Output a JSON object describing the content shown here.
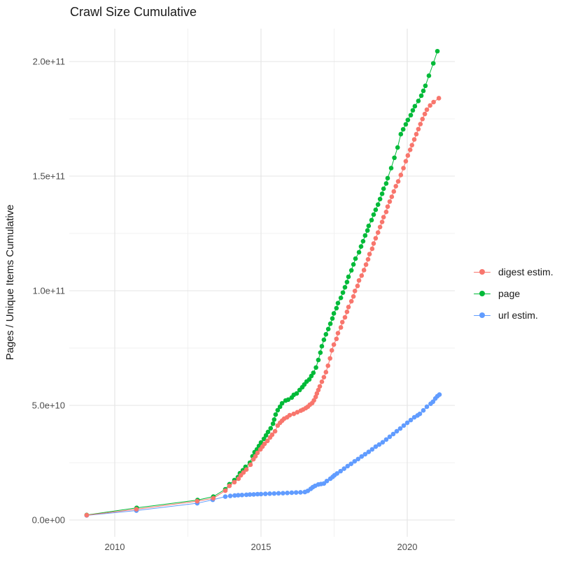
{
  "title": "Crawl Size Cumulative",
  "y_axis": {
    "title": "Pages / Unique Items Cumulative",
    "tick_labels": [
      "0.0e+00",
      "5.0e+10",
      "1.0e+11",
      "1.5e+11",
      "2.0e+11"
    ],
    "tick_values_billions": [
      0,
      50,
      100,
      150,
      200
    ],
    "minor_values_billions": [
      25,
      75,
      125,
      175
    ]
  },
  "x_axis": {
    "tick_labels": [
      "2010",
      "2015",
      "2020"
    ],
    "tick_values": [
      2010,
      2015,
      2020
    ],
    "minor_values": [
      2012.5,
      2017.5
    ]
  },
  "legend": {
    "items": [
      {
        "label": "digest estim.",
        "color": "#F8766D"
      },
      {
        "label": "page",
        "color": "#00BA38"
      },
      {
        "label": "url estim.",
        "color": "#619CFF"
      }
    ]
  },
  "colors": {
    "digest": "#F8766D",
    "page": "#00BA38",
    "url": "#619CFF",
    "grid_major": "#e4e4e4",
    "grid_minor": "#f0f0f0",
    "tick_text": "#4d4d4d",
    "title_text": "#1a1a1a"
  },
  "chart_data": {
    "type": "line",
    "marker": "point",
    "x_unit": "year",
    "y_unit": "pages / unique items (billions, 1e9)",
    "xlim": [
      2008.4,
      2021.7
    ],
    "ylim_billions": [
      0,
      215
    ],
    "grid": true,
    "legend_position": "right",
    "series": [
      {
        "name": "digest estim.",
        "color": "#F8766D",
        "points": [
          [
            2009.04,
            2.1
          ],
          [
            2010.74,
            4.7
          ],
          [
            2012.82,
            8.2
          ],
          [
            2013.37,
            9.5
          ],
          [
            2013.78,
            12.8
          ],
          [
            2013.92,
            14.9
          ],
          [
            2014.09,
            16.5
          ],
          [
            2014.23,
            18.0
          ],
          [
            2014.31,
            19.5
          ],
          [
            2014.4,
            20.7
          ],
          [
            2014.5,
            22.0
          ],
          [
            2014.64,
            24.1
          ],
          [
            2014.74,
            26.5
          ],
          [
            2014.81,
            27.8
          ],
          [
            2014.88,
            29.3
          ],
          [
            2014.98,
            30.8
          ],
          [
            2015.05,
            32.0
          ],
          [
            2015.12,
            33.2
          ],
          [
            2015.22,
            34.5
          ],
          [
            2015.31,
            36.0
          ],
          [
            2015.38,
            37.2
          ],
          [
            2015.48,
            38.7
          ],
          [
            2015.57,
            41.2
          ],
          [
            2015.65,
            42.4
          ],
          [
            2015.72,
            43.3
          ],
          [
            2015.79,
            44.2
          ],
          [
            2015.89,
            44.8
          ],
          [
            2015.98,
            45.7
          ],
          [
            2016.12,
            46.3
          ],
          [
            2016.24,
            47.0
          ],
          [
            2016.36,
            47.7
          ],
          [
            2016.44,
            48.2
          ],
          [
            2016.53,
            48.8
          ],
          [
            2016.6,
            49.4
          ],
          [
            2016.67,
            50.3
          ],
          [
            2016.75,
            51.0
          ],
          [
            2016.81,
            52.2
          ],
          [
            2016.87,
            53.7
          ],
          [
            2016.91,
            55.2
          ],
          [
            2016.96,
            56.7
          ],
          [
            2017.01,
            58.3
          ],
          [
            2017.08,
            60.3
          ],
          [
            2017.15,
            62.3
          ],
          [
            2017.22,
            64.5
          ],
          [
            2017.29,
            67.3
          ],
          [
            2017.36,
            70.5
          ],
          [
            2017.42,
            74.0
          ],
          [
            2017.49,
            76.5
          ],
          [
            2017.58,
            79.0
          ],
          [
            2017.63,
            81.5
          ],
          [
            2017.73,
            84.0
          ],
          [
            2017.78,
            86.3
          ],
          [
            2017.87,
            88.4
          ],
          [
            2017.94,
            90.8
          ],
          [
            2017.99,
            92.9
          ],
          [
            2018.09,
            95.4
          ],
          [
            2018.16,
            97.5
          ],
          [
            2018.21,
            99.9
          ],
          [
            2018.3,
            102.1
          ],
          [
            2018.35,
            104.5
          ],
          [
            2018.44,
            106.6
          ],
          [
            2018.52,
            109.0
          ],
          [
            2018.59,
            111.4
          ],
          [
            2018.66,
            113.7
          ],
          [
            2018.71,
            116.0
          ],
          [
            2018.8,
            118.3
          ],
          [
            2018.85,
            120.6
          ],
          [
            2018.92,
            122.9
          ],
          [
            2019.0,
            125.4
          ],
          [
            2019.07,
            127.8
          ],
          [
            2019.14,
            130.0
          ],
          [
            2019.19,
            132.1
          ],
          [
            2019.28,
            134.4
          ],
          [
            2019.33,
            136.7
          ],
          [
            2019.4,
            138.9
          ],
          [
            2019.47,
            141.0
          ],
          [
            2019.54,
            143.3
          ],
          [
            2019.61,
            145.6
          ],
          [
            2019.69,
            147.7
          ],
          [
            2019.78,
            150.5
          ],
          [
            2019.87,
            153.5
          ],
          [
            2019.95,
            156.5
          ],
          [
            2020.02,
            159.0
          ],
          [
            2020.1,
            161.5
          ],
          [
            2020.16,
            163.5
          ],
          [
            2020.24,
            166.0
          ],
          [
            2020.31,
            168.3
          ],
          [
            2020.38,
            170.5
          ],
          [
            2020.45,
            172.7
          ],
          [
            2020.52,
            174.9
          ],
          [
            2020.6,
            177.1
          ],
          [
            2020.67,
            179.0
          ],
          [
            2020.78,
            180.8
          ],
          [
            2020.9,
            182.3
          ],
          [
            2021.08,
            184.0
          ]
        ]
      },
      {
        "name": "page",
        "color": "#00BA38",
        "points": [
          [
            2009.04,
            2.2
          ],
          [
            2010.75,
            5.3
          ],
          [
            2012.83,
            8.7
          ],
          [
            2013.37,
            10.2
          ],
          [
            2013.78,
            13.4
          ],
          [
            2013.92,
            15.6
          ],
          [
            2014.09,
            17.4
          ],
          [
            2014.21,
            18.7
          ],
          [
            2014.28,
            20.4
          ],
          [
            2014.38,
            21.7
          ],
          [
            2014.47,
            23.2
          ],
          [
            2014.62,
            25.0
          ],
          [
            2014.71,
            27.8
          ],
          [
            2014.78,
            29.6
          ],
          [
            2014.86,
            30.8
          ],
          [
            2014.93,
            32.3
          ],
          [
            2015.0,
            33.8
          ],
          [
            2015.1,
            35.4
          ],
          [
            2015.17,
            36.9
          ],
          [
            2015.24,
            38.4
          ],
          [
            2015.33,
            40.0
          ],
          [
            2015.41,
            42.0
          ],
          [
            2015.45,
            43.8
          ],
          [
            2015.5,
            46.0
          ],
          [
            2015.57,
            47.9
          ],
          [
            2015.65,
            49.4
          ],
          [
            2015.72,
            50.9
          ],
          [
            2015.84,
            52.1
          ],
          [
            2015.93,
            52.5
          ],
          [
            2016.05,
            53.4
          ],
          [
            2016.12,
            54.6
          ],
          [
            2016.22,
            55.2
          ],
          [
            2016.32,
            56.7
          ],
          [
            2016.41,
            57.9
          ],
          [
            2016.48,
            59.1
          ],
          [
            2016.56,
            60.4
          ],
          [
            2016.65,
            61.3
          ],
          [
            2016.72,
            62.8
          ],
          [
            2016.79,
            64.2
          ],
          [
            2016.88,
            66.5
          ],
          [
            2016.96,
            69.8
          ],
          [
            2017.03,
            73.0
          ],
          [
            2017.08,
            75.8
          ],
          [
            2017.15,
            78.6
          ],
          [
            2017.22,
            81.0
          ],
          [
            2017.3,
            83.3
          ],
          [
            2017.37,
            85.6
          ],
          [
            2017.44,
            87.9
          ],
          [
            2017.49,
            90.1
          ],
          [
            2017.58,
            92.4
          ],
          [
            2017.63,
            94.6
          ],
          [
            2017.73,
            96.9
          ],
          [
            2017.8,
            99.2
          ],
          [
            2017.87,
            101.5
          ],
          [
            2017.94,
            103.8
          ],
          [
            2017.99,
            106.1
          ],
          [
            2018.09,
            108.9
          ],
          [
            2018.16,
            111.5
          ],
          [
            2018.23,
            114.0
          ],
          [
            2018.35,
            116.8
          ],
          [
            2018.42,
            119.3
          ],
          [
            2018.49,
            121.6
          ],
          [
            2018.56,
            124.1
          ],
          [
            2018.64,
            126.3
          ],
          [
            2018.68,
            128.3
          ],
          [
            2018.78,
            130.8
          ],
          [
            2018.85,
            133.2
          ],
          [
            2018.92,
            135.3
          ],
          [
            2019.0,
            137.6
          ],
          [
            2019.07,
            140.0
          ],
          [
            2019.14,
            142.3
          ],
          [
            2019.19,
            144.5
          ],
          [
            2019.28,
            146.8
          ],
          [
            2019.33,
            149.1
          ],
          [
            2019.45,
            153.5
          ],
          [
            2019.56,
            158.0
          ],
          [
            2019.67,
            162.5
          ],
          [
            2019.78,
            168.3
          ],
          [
            2019.86,
            170.4
          ],
          [
            2019.95,
            172.6
          ],
          [
            2020.02,
            174.5
          ],
          [
            2020.12,
            176.6
          ],
          [
            2020.19,
            178.7
          ],
          [
            2020.26,
            180.5
          ],
          [
            2020.38,
            182.8
          ],
          [
            2020.48,
            185.1
          ],
          [
            2020.55,
            187.2
          ],
          [
            2020.62,
            189.4
          ],
          [
            2020.74,
            193.8
          ],
          [
            2020.89,
            199.2
          ],
          [
            2021.03,
            204.5
          ]
        ]
      },
      {
        "name": "url estim.",
        "color": "#619CFF",
        "points": [
          [
            2009.04,
            2.0
          ],
          [
            2010.74,
            4.1
          ],
          [
            2012.82,
            7.3
          ],
          [
            2013.35,
            8.8
          ],
          [
            2013.78,
            10.2
          ],
          [
            2013.95,
            10.5
          ],
          [
            2014.1,
            10.7
          ],
          [
            2014.22,
            10.8
          ],
          [
            2014.35,
            10.9
          ],
          [
            2014.5,
            11.0
          ],
          [
            2014.62,
            11.1
          ],
          [
            2014.75,
            11.15
          ],
          [
            2014.88,
            11.25
          ],
          [
            2015.0,
            11.3
          ],
          [
            2015.15,
            11.4
          ],
          [
            2015.3,
            11.5
          ],
          [
            2015.45,
            11.55
          ],
          [
            2015.6,
            11.65
          ],
          [
            2015.75,
            11.7
          ],
          [
            2015.9,
            11.8
          ],
          [
            2016.05,
            11.9
          ],
          [
            2016.2,
            12.0
          ],
          [
            2016.35,
            12.05
          ],
          [
            2016.5,
            12.2
          ],
          [
            2016.6,
            12.7
          ],
          [
            2016.7,
            13.6
          ],
          [
            2016.77,
            14.3
          ],
          [
            2016.85,
            14.9
          ],
          [
            2016.96,
            15.5
          ],
          [
            2017.05,
            15.7
          ],
          [
            2017.15,
            15.9
          ],
          [
            2017.25,
            17.0
          ],
          [
            2017.37,
            18.0
          ],
          [
            2017.45,
            18.8
          ],
          [
            2017.51,
            19.5
          ],
          [
            2017.6,
            20.3
          ],
          [
            2017.72,
            21.3
          ],
          [
            2017.84,
            22.4
          ],
          [
            2017.96,
            23.5
          ],
          [
            2018.08,
            24.5
          ],
          [
            2018.2,
            25.6
          ],
          [
            2018.32,
            26.6
          ],
          [
            2018.44,
            27.7
          ],
          [
            2018.56,
            28.7
          ],
          [
            2018.68,
            29.7
          ],
          [
            2018.8,
            30.8
          ],
          [
            2018.92,
            32.0
          ],
          [
            2019.04,
            32.9
          ],
          [
            2019.16,
            33.9
          ],
          [
            2019.28,
            35.1
          ],
          [
            2019.4,
            36.3
          ],
          [
            2019.52,
            37.5
          ],
          [
            2019.64,
            38.7
          ],
          [
            2019.76,
            39.9
          ],
          [
            2019.88,
            41.2
          ],
          [
            2020.0,
            42.4
          ],
          [
            2020.12,
            43.6
          ],
          [
            2020.24,
            44.8
          ],
          [
            2020.35,
            45.6
          ],
          [
            2020.43,
            46.3
          ],
          [
            2020.55,
            47.8
          ],
          [
            2020.67,
            49.4
          ],
          [
            2020.8,
            50.7
          ],
          [
            2020.88,
            51.6
          ],
          [
            2020.96,
            53.0
          ],
          [
            2021.03,
            54.0
          ],
          [
            2021.1,
            54.7
          ]
        ]
      }
    ]
  }
}
